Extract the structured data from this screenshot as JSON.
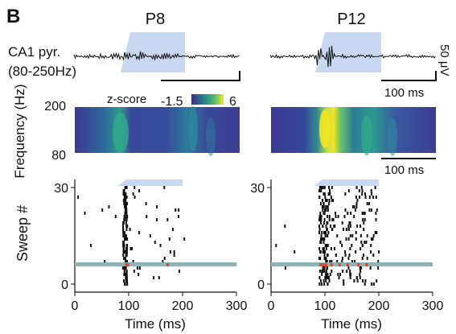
{
  "panel_letter": "B",
  "columns": [
    {
      "title": "P8"
    },
    {
      "title": "P12"
    }
  ],
  "lfp": {
    "label_line1": "CA1 pyr.",
    "label_line2": "(80-250Hz)",
    "scale_bar_amplitude": "50 μV",
    "scale_bar_time": "100 ms"
  },
  "spectrogram": {
    "ylabel": "Frequency (Hz)",
    "y_ticks": [
      "200",
      "80"
    ],
    "colorbar_label": "z-score",
    "colorbar_min": "-1.5",
    "colorbar_max": "6",
    "scale_bar_time": "100 ms",
    "colors": {
      "low": "#3b2f86",
      "mid": "#2a8c8c",
      "high": "#f4e51f"
    }
  },
  "raster": {
    "ylabel": "Sweep #",
    "xlabel": "Time (ms)",
    "x_ticks": [
      "0",
      "100",
      "200",
      "300"
    ],
    "y_ticks": [
      "30",
      "0"
    ],
    "stim_window_ms": [
      80,
      200
    ],
    "highlight_sweep": 6,
    "highlight_color": "#8fb3b3",
    "highlight_spike_color": "#e8412a",
    "stim_color": "#c7d8f0"
  },
  "chart_data": [
    {
      "type": "scatter",
      "title": "P8",
      "xlabel": "Time (ms)",
      "ylabel": "Sweep #",
      "xlim": [
        0,
        300
      ],
      "ylim": [
        0,
        30
      ],
      "band_ms": [
        88,
        96
      ]
    },
    {
      "type": "scatter",
      "title": "P12",
      "xlabel": "Time (ms)",
      "ylabel": "Sweep #",
      "xlim": [
        0,
        300
      ],
      "ylim": [
        0,
        30
      ],
      "band_ms": [
        88,
        104
      ]
    }
  ]
}
